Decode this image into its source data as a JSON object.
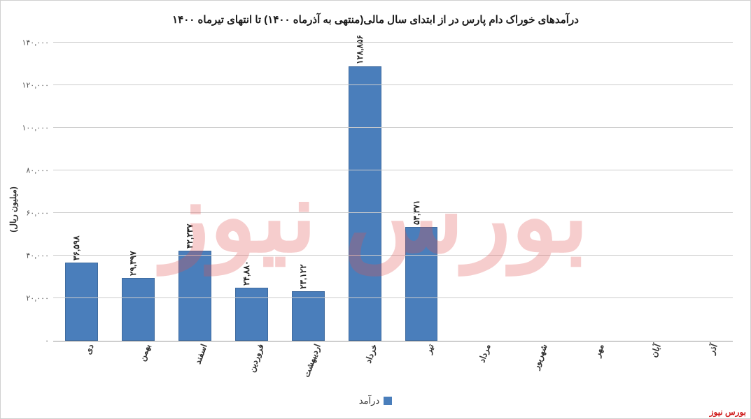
{
  "chart": {
    "type": "bar",
    "title": "درآمدهای خوراک دام پارس در از ابتدای سال مالی(منتهی به آذرماه ۱۴۰۰) تا انتهای تیرماه ۱۴۰۰",
    "title_fontsize": 15,
    "y_axis_title": "(میلیون ریال)",
    "ylim": [
      0,
      140000
    ],
    "ytick_step": 20000,
    "yticks": [
      {
        "v": 0,
        "label": "۰"
      },
      {
        "v": 20000,
        "label": "۲۰,۰۰۰"
      },
      {
        "v": 40000,
        "label": "۴۰,۰۰۰"
      },
      {
        "v": 60000,
        "label": "۶۰,۰۰۰"
      },
      {
        "v": 80000,
        "label": "۸۰,۰۰۰"
      },
      {
        "v": 100000,
        "label": "۱۰۰,۰۰۰"
      },
      {
        "v": 120000,
        "label": "۱۲۰,۰۰۰"
      },
      {
        "v": 140000,
        "label": "۱۴۰,۰۰۰"
      }
    ],
    "categories": [
      "دی",
      "بهمن",
      "اسفند",
      "فروردین",
      "اردیبهشت",
      "خرداد",
      "تیر",
      "مرداد",
      "شهریور",
      "مهر",
      "آبان",
      "آذر"
    ],
    "series": {
      "label": "درآمد",
      "values": [
        36598,
        29397,
        42237,
        24880,
        23122,
        128856,
        53371,
        null,
        null,
        null,
        null,
        null
      ],
      "value_labels": [
        "۳۶,۵۹۸",
        "۲۹,۳۹۷",
        "۴۲,۲۳۷",
        "۲۴,۸۸۰",
        "۲۳,۱۲۲",
        "۱۲۸,۸۵۶",
        "۵۳,۳۷۱",
        "",
        "",
        "",
        "",
        ""
      ],
      "color": "#4a7ebb"
    },
    "background_color": "#ffffff",
    "grid_color": "#cccccc",
    "axis_color": "#999999",
    "label_fontsize": 12,
    "bar_width_ratio": 0.58,
    "watermark_text": "بورس نیوز",
    "watermark_color": "#e05050",
    "watermark_opacity": 0.28,
    "corner_text": "بورس نیوز",
    "corner_color": "#d02020"
  }
}
